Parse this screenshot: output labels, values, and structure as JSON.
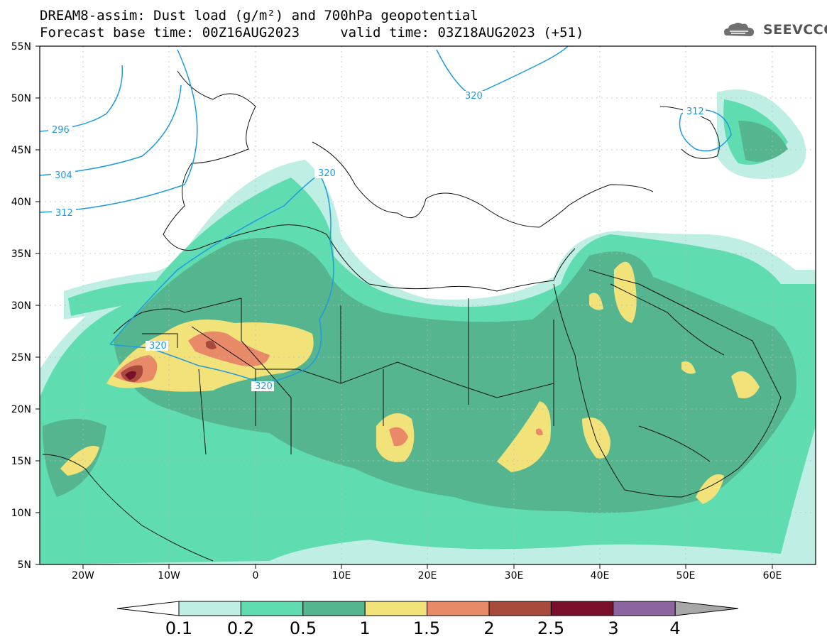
{
  "title": {
    "line1": "DREAM8-assim: Dust load (g/m²) and 700hPa geopotential",
    "line2": "Forecast base time: 00Z16AUG2023     valid time: 03Z18AUG2023 (+51)"
  },
  "logo": {
    "text": "SEEVCCC",
    "icon": "cloud-icon"
  },
  "axes": {
    "lat_labels": [
      "55N",
      "50N",
      "45N",
      "40N",
      "35N",
      "30N",
      "25N",
      "20N",
      "15N",
      "10N",
      "5N"
    ],
    "lon_labels": [
      "20W",
      "10W",
      "0",
      "10E",
      "20E",
      "30E",
      "40E",
      "50E",
      "60E"
    ]
  },
  "contours": {
    "labels": [
      "296",
      "304",
      "312",
      "320",
      "320",
      "320",
      "320",
      "312"
    ]
  },
  "colorbar": {
    "labels": [
      "0.1",
      "0.2",
      "0.5",
      "1",
      "1.5",
      "2",
      "2.5",
      "3",
      "4"
    ],
    "colors": [
      "#ffffff",
      "#bfeee4",
      "#5fdcb0",
      "#55b58e",
      "#f2e27a",
      "#e88a68",
      "#a94b3c",
      "#7a0f2c",
      "#8b64a0",
      "#a8a8a8"
    ]
  },
  "chart_data": {
    "type": "heatmap",
    "variable": "Dust load (g/m²)",
    "overlay": "700hPa geopotential",
    "lon_range": [
      -25,
      65
    ],
    "lat_range": [
      5,
      55
    ],
    "levels": [
      0.1,
      0.2,
      0.5,
      1,
      1.5,
      2,
      2.5,
      3,
      4
    ],
    "contour_values": [
      296,
      304,
      312,
      320
    ],
    "grid": true
  }
}
